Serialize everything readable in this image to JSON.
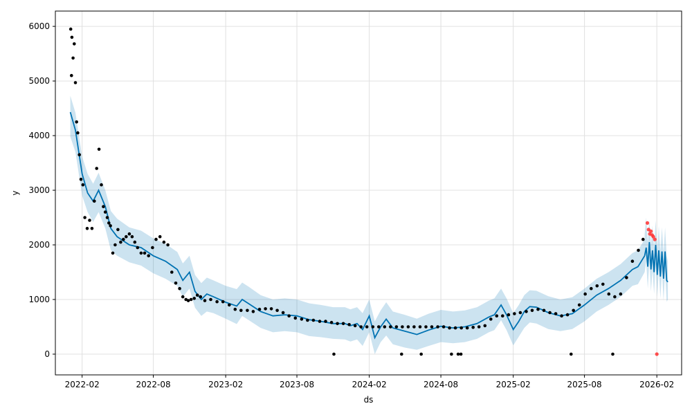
{
  "chart_data": {
    "type": "scatter",
    "xlabel": "ds",
    "ylabel": "y",
    "xlim": [
      "2021-11-25",
      "2026-04-05"
    ],
    "ylim": [
      -380,
      6280
    ],
    "grid": true,
    "x_ticks": [
      "2022-02",
      "2022-08",
      "2023-02",
      "2023-08",
      "2024-02",
      "2024-08",
      "2025-02",
      "2025-08",
      "2026-02"
    ],
    "y_ticks": [
      0,
      1000,
      2000,
      3000,
      4000,
      5000,
      6000
    ],
    "colors": {
      "observed": "#000000",
      "outlier": "#ff3030",
      "forecast_line": "#0072B2",
      "uncertainty_band": "#0072B2"
    },
    "series": [
      {
        "role": "observed",
        "x": [
          "2022-01-03",
          "2022-01-05",
          "2022-01-06",
          "2022-01-09",
          "2022-01-12",
          "2022-01-15",
          "2022-01-18",
          "2022-01-21",
          "2022-01-25",
          "2022-01-29",
          "2022-02-03",
          "2022-02-08",
          "2022-02-14",
          "2022-02-20",
          "2022-02-26",
          "2022-03-04",
          "2022-03-10",
          "2022-03-16",
          "2022-03-22",
          "2022-03-27",
          "2022-04-01",
          "2022-04-06",
          "2022-04-10",
          "2022-04-14",
          "2022-04-20",
          "2022-04-26",
          "2022-05-03",
          "2022-05-10",
          "2022-05-17",
          "2022-05-24",
          "2022-06-01",
          "2022-06-08",
          "2022-06-15",
          "2022-06-22",
          "2022-07-01",
          "2022-07-10",
          "2022-07-20",
          "2022-07-30",
          "2022-08-08",
          "2022-08-18",
          "2022-08-28",
          "2022-09-07",
          "2022-09-17",
          "2022-09-27",
          "2022-10-07",
          "2022-10-15",
          "2022-10-23",
          "2022-10-29",
          "2022-11-05",
          "2022-11-13",
          "2022-11-21",
          "2022-11-29",
          "2022-12-10",
          "2022-12-25",
          "2023-01-10",
          "2023-01-25",
          "2023-02-10",
          "2023-02-25",
          "2023-03-12",
          "2023-03-28",
          "2023-04-12",
          "2023-04-28",
          "2023-05-13",
          "2023-05-28",
          "2023-06-12",
          "2023-06-27",
          "2023-07-12",
          "2023-07-28",
          "2023-08-13",
          "2023-08-28",
          "2023-09-12",
          "2023-09-28",
          "2023-10-13",
          "2023-10-28",
          "2023-11-12",
          "2023-11-27",
          "2023-12-12",
          "2023-12-27",
          "2024-01-11",
          "2024-01-26",
          "2024-02-10",
          "2024-02-25",
          "2024-03-11",
          "2024-03-26",
          "2024-04-10",
          "2024-04-25",
          "2024-05-10",
          "2024-05-25",
          "2024-06-09",
          "2024-06-24",
          "2024-07-09",
          "2024-07-24",
          "2024-08-08",
          "2024-08-23",
          "2024-09-07",
          "2024-09-22",
          "2024-10-07",
          "2024-10-22",
          "2024-11-06",
          "2024-11-21",
          "2024-12-06",
          "2024-12-21",
          "2025-01-05",
          "2025-01-20",
          "2025-02-04",
          "2025-02-19",
          "2025-03-06",
          "2025-03-21",
          "2025-04-05",
          "2025-04-20",
          "2025-05-05",
          "2025-05-20",
          "2025-06-04",
          "2025-06-19",
          "2025-07-04",
          "2025-07-19",
          "2025-08-03",
          "2025-08-18",
          "2025-09-02",
          "2025-09-17",
          "2025-10-02",
          "2025-10-17",
          "2025-11-01",
          "2025-11-16",
          "2025-12-01",
          "2025-12-16",
          "2025-12-28",
          "2023-11-03",
          "2024-04-23",
          "2024-06-12",
          "2024-08-28",
          "2024-09-14",
          "2024-09-21",
          "2025-06-28",
          "2025-10-12"
        ],
        "y": [
          5950,
          5100,
          5800,
          5420,
          5680,
          4970,
          4250,
          4050,
          3650,
          3200,
          3100,
          2500,
          2300,
          2450,
          2300,
          2800,
          3400,
          3750,
          3100,
          2700,
          2600,
          2500,
          2400,
          2350,
          1850,
          2000,
          2280,
          2050,
          2100,
          2150,
          2200,
          2150,
          2050,
          1950,
          1850,
          1850,
          1800,
          1950,
          2100,
          2150,
          2050,
          2000,
          1500,
          1300,
          1200,
          1050,
          1000,
          980,
          1000,
          1020,
          1080,
          1050,
          980,
          1000,
          960,
          960,
          900,
          820,
          800,
          800,
          780,
          820,
          830,
          830,
          800,
          760,
          700,
          660,
          640,
          620,
          620,
          600,
          600,
          580,
          560,
          560,
          540,
          520,
          500,
          500,
          500,
          500,
          500,
          500,
          500,
          500,
          500,
          500,
          500,
          500,
          500,
          500,
          500,
          480,
          480,
          480,
          480,
          490,
          500,
          520,
          640,
          700,
          700,
          720,
          740,
          760,
          780,
          800,
          820,
          800,
          760,
          740,
          700,
          720,
          800,
          900,
          1100,
          1200,
          1250,
          1280,
          1100,
          1050,
          1100,
          1400,
          1700,
          1900,
          2100,
          0,
          0,
          0,
          0,
          0,
          0,
          0,
          0
        ],
        "hidden_marker_note": ""
      },
      {
        "role": "outlier",
        "x": [
          "2026-01-08",
          "2026-01-11",
          "2026-01-14",
          "2026-01-17",
          "2026-01-20",
          "2026-01-23",
          "2026-01-27",
          "2026-02-01"
        ],
        "y": [
          2400,
          2280,
          2200,
          2250,
          2180,
          2150,
          2100,
          0
        ]
      },
      {
        "role": "forecast",
        "x": [
          "2022-01-02",
          "2022-01-15",
          "2022-02-01",
          "2022-02-15",
          "2022-03-01",
          "2022-03-15",
          "2022-04-01",
          "2022-04-15",
          "2022-05-01",
          "2022-06-01",
          "2022-07-01",
          "2022-08-01",
          "2022-09-01",
          "2022-10-01",
          "2022-10-15",
          "2022-11-01",
          "2022-11-15",
          "2022-12-01",
          "2022-12-15",
          "2023-01-01",
          "2023-02-01",
          "2023-03-01",
          "2023-03-15",
          "2023-04-01",
          "2023-05-01",
          "2023-06-01",
          "2023-07-01",
          "2023-08-01",
          "2023-09-01",
          "2023-10-01",
          "2023-11-01",
          "2023-12-01",
          "2023-12-15",
          "2024-01-01",
          "2024-01-15",
          "2024-02-01",
          "2024-02-15",
          "2024-03-01",
          "2024-03-15",
          "2024-04-01",
          "2024-05-01",
          "2024-06-01",
          "2024-07-01",
          "2024-08-01",
          "2024-09-01",
          "2024-10-01",
          "2024-11-01",
          "2024-12-01",
          "2024-12-15",
          "2025-01-01",
          "2025-01-15",
          "2025-02-01",
          "2025-02-15",
          "2025-03-01",
          "2025-03-15",
          "2025-04-01",
          "2025-05-01",
          "2025-06-01",
          "2025-07-01",
          "2025-08-01",
          "2025-09-01",
          "2025-10-01",
          "2025-11-01",
          "2025-12-01",
          "2025-12-15",
          "2026-01-01"
        ],
        "y": [
          4430,
          4100,
          3300,
          2950,
          2800,
          3000,
          2700,
          2300,
          2150,
          2000,
          1950,
          1800,
          1700,
          1550,
          1350,
          1500,
          1150,
          1000,
          1100,
          1050,
          950,
          880,
          1000,
          920,
          780,
          700,
          720,
          700,
          630,
          600,
          560,
          560,
          520,
          560,
          450,
          700,
          300,
          500,
          640,
          480,
          420,
          360,
          440,
          510,
          480,
          500,
          560,
          680,
          720,
          900,
          720,
          450,
          600,
          780,
          870,
          860,
          760,
          700,
          740,
          900,
          1080,
          1200,
          1350,
          1550,
          1600,
          1800
        ]
      },
      {
        "role": "forecast_future",
        "x": [
          "2026-01-01",
          "2026-01-05",
          "2026-01-09",
          "2026-01-13",
          "2026-01-17",
          "2026-01-21",
          "2026-01-25",
          "2026-01-29",
          "2026-02-02",
          "2026-02-06",
          "2026-02-10",
          "2026-02-14",
          "2026-02-18",
          "2026-02-22",
          "2026-02-26",
          "2026-03-01"
        ],
        "y": [
          1800,
          1950,
          1600,
          2050,
          1550,
          1900,
          1500,
          2000,
          1450,
          1900,
          1420,
          1880,
          1380,
          1880,
          1350,
          1320
        ]
      }
    ],
    "uncertainty": {
      "lower": [
        3980,
        3700,
        2900,
        2600,
        2420,
        2600,
        2300,
        1900,
        1800,
        1680,
        1620,
        1480,
        1380,
        1250,
        1050,
        1200,
        850,
        700,
        780,
        750,
        650,
        550,
        700,
        620,
        480,
        400,
        420,
        400,
        330,
        310,
        280,
        270,
        230,
        270,
        150,
        400,
        0,
        220,
        340,
        180,
        120,
        80,
        150,
        220,
        200,
        220,
        280,
        400,
        440,
        620,
        440,
        160,
        320,
        480,
        580,
        560,
        460,
        420,
        460,
        600,
        780,
        900,
        1050,
        1250,
        1280,
        1500
      ],
      "upper": [
        4730,
        4420,
        3620,
        3300,
        3120,
        3320,
        3000,
        2620,
        2480,
        2320,
        2260,
        2120,
        2020,
        1870,
        1660,
        1800,
        1450,
        1300,
        1400,
        1350,
        1250,
        1190,
        1310,
        1230,
        1080,
        1000,
        1020,
        1000,
        930,
        900,
        860,
        860,
        820,
        860,
        750,
        1000,
        600,
        800,
        950,
        780,
        720,
        650,
        740,
        810,
        780,
        800,
        860,
        980,
        1020,
        1200,
        1020,
        750,
        900,
        1080,
        1170,
        1160,
        1060,
        1000,
        1040,
        1200,
        1380,
        1500,
        1650,
        1850,
        1900,
        2100
      ],
      "future_lower": [
        1500,
        1700,
        1200,
        1700,
        1150,
        1550,
        1100,
        1650,
        1050,
        1550,
        1020,
        1520,
        980,
        1500,
        960,
        1000
      ],
      "future_upper": [
        2200,
        2500,
        2050,
        2450,
        2000,
        2350,
        1950,
        2450,
        1900,
        2350,
        1880,
        2320,
        1840,
        2320,
        1800,
        1700
      ]
    }
  }
}
